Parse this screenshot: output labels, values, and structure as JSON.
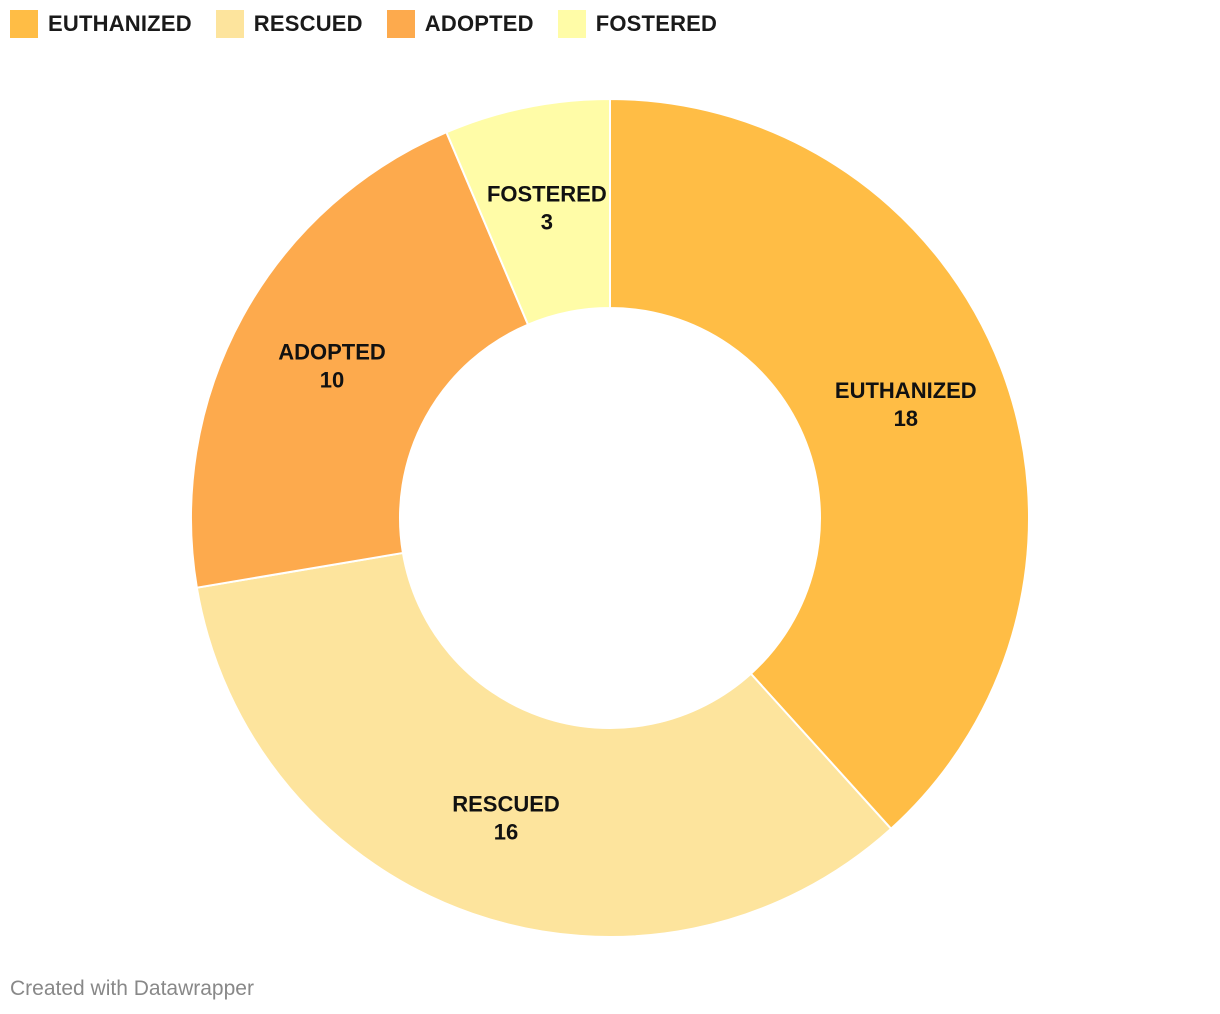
{
  "chart_data": {
    "type": "pie",
    "variant": "donut",
    "categories": [
      "EUTHANIZED",
      "RESCUED",
      "ADOPTED",
      "FOSTERED"
    ],
    "values": [
      18,
      16,
      10,
      3
    ],
    "colors": [
      "#ffbd45",
      "#fde49d",
      "#fdaa4d",
      "#fffca7"
    ],
    "legend": "top-left",
    "title": "",
    "xlabel": "",
    "ylabel": ""
  },
  "legend": {
    "items": [
      {
        "label": "EUTHANIZED",
        "color": "#ffbd45"
      },
      {
        "label": "RESCUED",
        "color": "#fde49d"
      },
      {
        "label": "ADOPTED",
        "color": "#fdaa4d"
      },
      {
        "label": "FOSTERED",
        "color": "#fffca7"
      }
    ]
  },
  "footer": {
    "credit": "Created with Datawrapper"
  }
}
